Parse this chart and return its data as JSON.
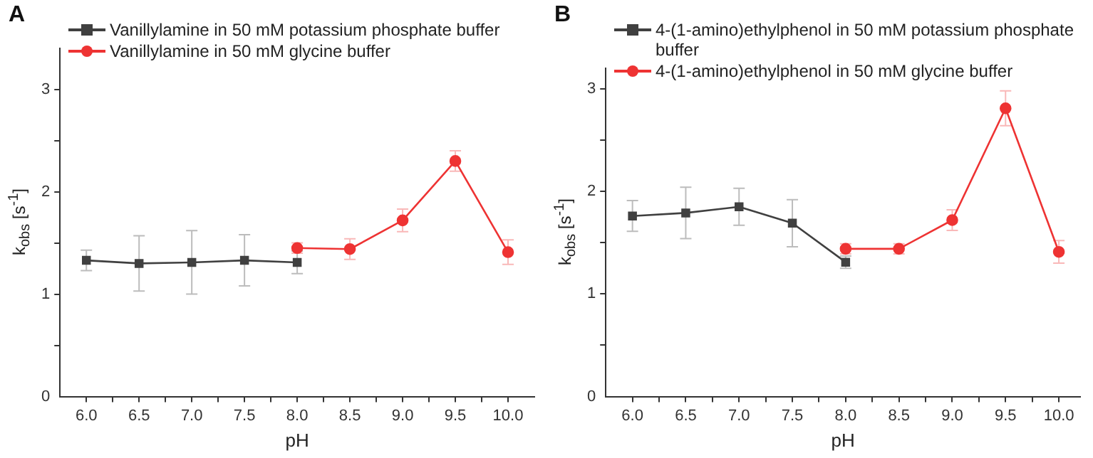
{
  "chart_data": [
    {
      "type": "line",
      "title": "A",
      "xlabel": "pH",
      "ylabel": "k$_{obs}$ [s$^{-1}$]",
      "legend": "top left",
      "xlim": [
        5.75,
        10.25
      ],
      "ylim": [
        0,
        3.4
      ],
      "xticks": [
        {
          "value": 6,
          "label": "6.0"
        },
        {
          "value": 6.25,
          "label": null
        },
        {
          "value": 6.5,
          "label": "6.5"
        },
        {
          "value": 6.75,
          "label": null
        },
        {
          "value": 7,
          "label": "7.0"
        },
        {
          "value": 7.25,
          "label": null
        },
        {
          "value": 7.5,
          "label": "7.5"
        },
        {
          "value": 7.75,
          "label": null
        },
        {
          "value": 8,
          "label": "8.0"
        },
        {
          "value": 8.25,
          "label": null
        },
        {
          "value": 8.5,
          "label": "8.5"
        },
        {
          "value": 8.75,
          "label": null
        },
        {
          "value": 9,
          "label": "9.0"
        },
        {
          "value": 9.25,
          "label": null
        },
        {
          "value": 9.5,
          "label": "9.5"
        },
        {
          "value": 9.75,
          "label": null
        },
        {
          "value": 10,
          "label": "10.0"
        }
      ],
      "yticks": [
        0,
        {
          "value": 0.5,
          "label": null
        },
        1,
        {
          "value": 1.5,
          "label": null
        },
        2,
        {
          "value": 2.5,
          "label": null
        },
        3
      ],
      "series": [
        {
          "name": "Vanillylamine in 50 mM potassium phosphate buffer",
          "color": "#404040",
          "marker": "square",
          "x": [
            6,
            6.5,
            7,
            7.5,
            8
          ],
          "values": [
            1.33,
            1.3,
            1.31,
            1.33,
            1.31
          ],
          "errors": [
            0.1,
            0.27,
            0.31,
            0.25,
            0.11
          ]
        },
        {
          "name": "Vanillylamine in 50 mM glycine buffer",
          "color": "#ee3333",
          "marker": "circle",
          "x": [
            8,
            8.5,
            9,
            9.5,
            10
          ],
          "values": [
            1.45,
            1.44,
            1.72,
            2.3,
            1.41
          ],
          "errors": [
            0.05,
            0.1,
            0.11,
            0.1,
            0.12
          ]
        }
      ]
    },
    {
      "type": "line",
      "title": "B",
      "xlabel": "pH",
      "ylabel": "k$_{obs}$ [s$^{-1}$]",
      "legend": "top left",
      "xlim": [
        5.75,
        10.2
      ],
      "ylim": [
        0,
        3.2
      ],
      "xticks": [
        {
          "value": 6,
          "label": "6.0"
        },
        {
          "value": 6.25,
          "label": null
        },
        {
          "value": 6.5,
          "label": "6.5"
        },
        {
          "value": 6.75,
          "label": null
        },
        {
          "value": 7,
          "label": "7.0"
        },
        {
          "value": 7.25,
          "label": null
        },
        {
          "value": 7.5,
          "label": "7.5"
        },
        {
          "value": 7.75,
          "label": null
        },
        {
          "value": 8,
          "label": "8.0"
        },
        {
          "value": 8.25,
          "label": null
        },
        {
          "value": 8.5,
          "label": "8.5"
        },
        {
          "value": 8.75,
          "label": null
        },
        {
          "value": 9,
          "label": "9.0"
        },
        {
          "value": 9.25,
          "label": null
        },
        {
          "value": 9.5,
          "label": "9.5"
        },
        {
          "value": 9.75,
          "label": null
        },
        {
          "value": 10,
          "label": "10.0"
        }
      ],
      "yticks": [
        0,
        {
          "value": 0.5,
          "label": null
        },
        1,
        {
          "value": 1.5,
          "label": null
        },
        2,
        {
          "value": 2.5,
          "label": null
        },
        3
      ],
      "series": [
        {
          "name": "4-(1-amino)ethylphenol in 50 mM potassium phosphate buffer",
          "color": "#404040",
          "marker": "square",
          "x": [
            6,
            6.5,
            7,
            7.5,
            8
          ],
          "values": [
            1.76,
            1.79,
            1.85,
            1.69,
            1.31
          ],
          "errors": [
            0.15,
            0.25,
            0.18,
            0.23,
            0.06
          ]
        },
        {
          "name": "4-(1-amino)ethylphenol in 50 mM glycine buffer",
          "color": "#ee3333",
          "marker": "circle",
          "x": [
            8,
            8.5,
            9,
            9.5,
            10
          ],
          "values": [
            1.44,
            1.44,
            1.72,
            2.81,
            1.41
          ],
          "errors": [
            0.05,
            0.05,
            0.1,
            0.17,
            0.11
          ]
        }
      ]
    }
  ]
}
